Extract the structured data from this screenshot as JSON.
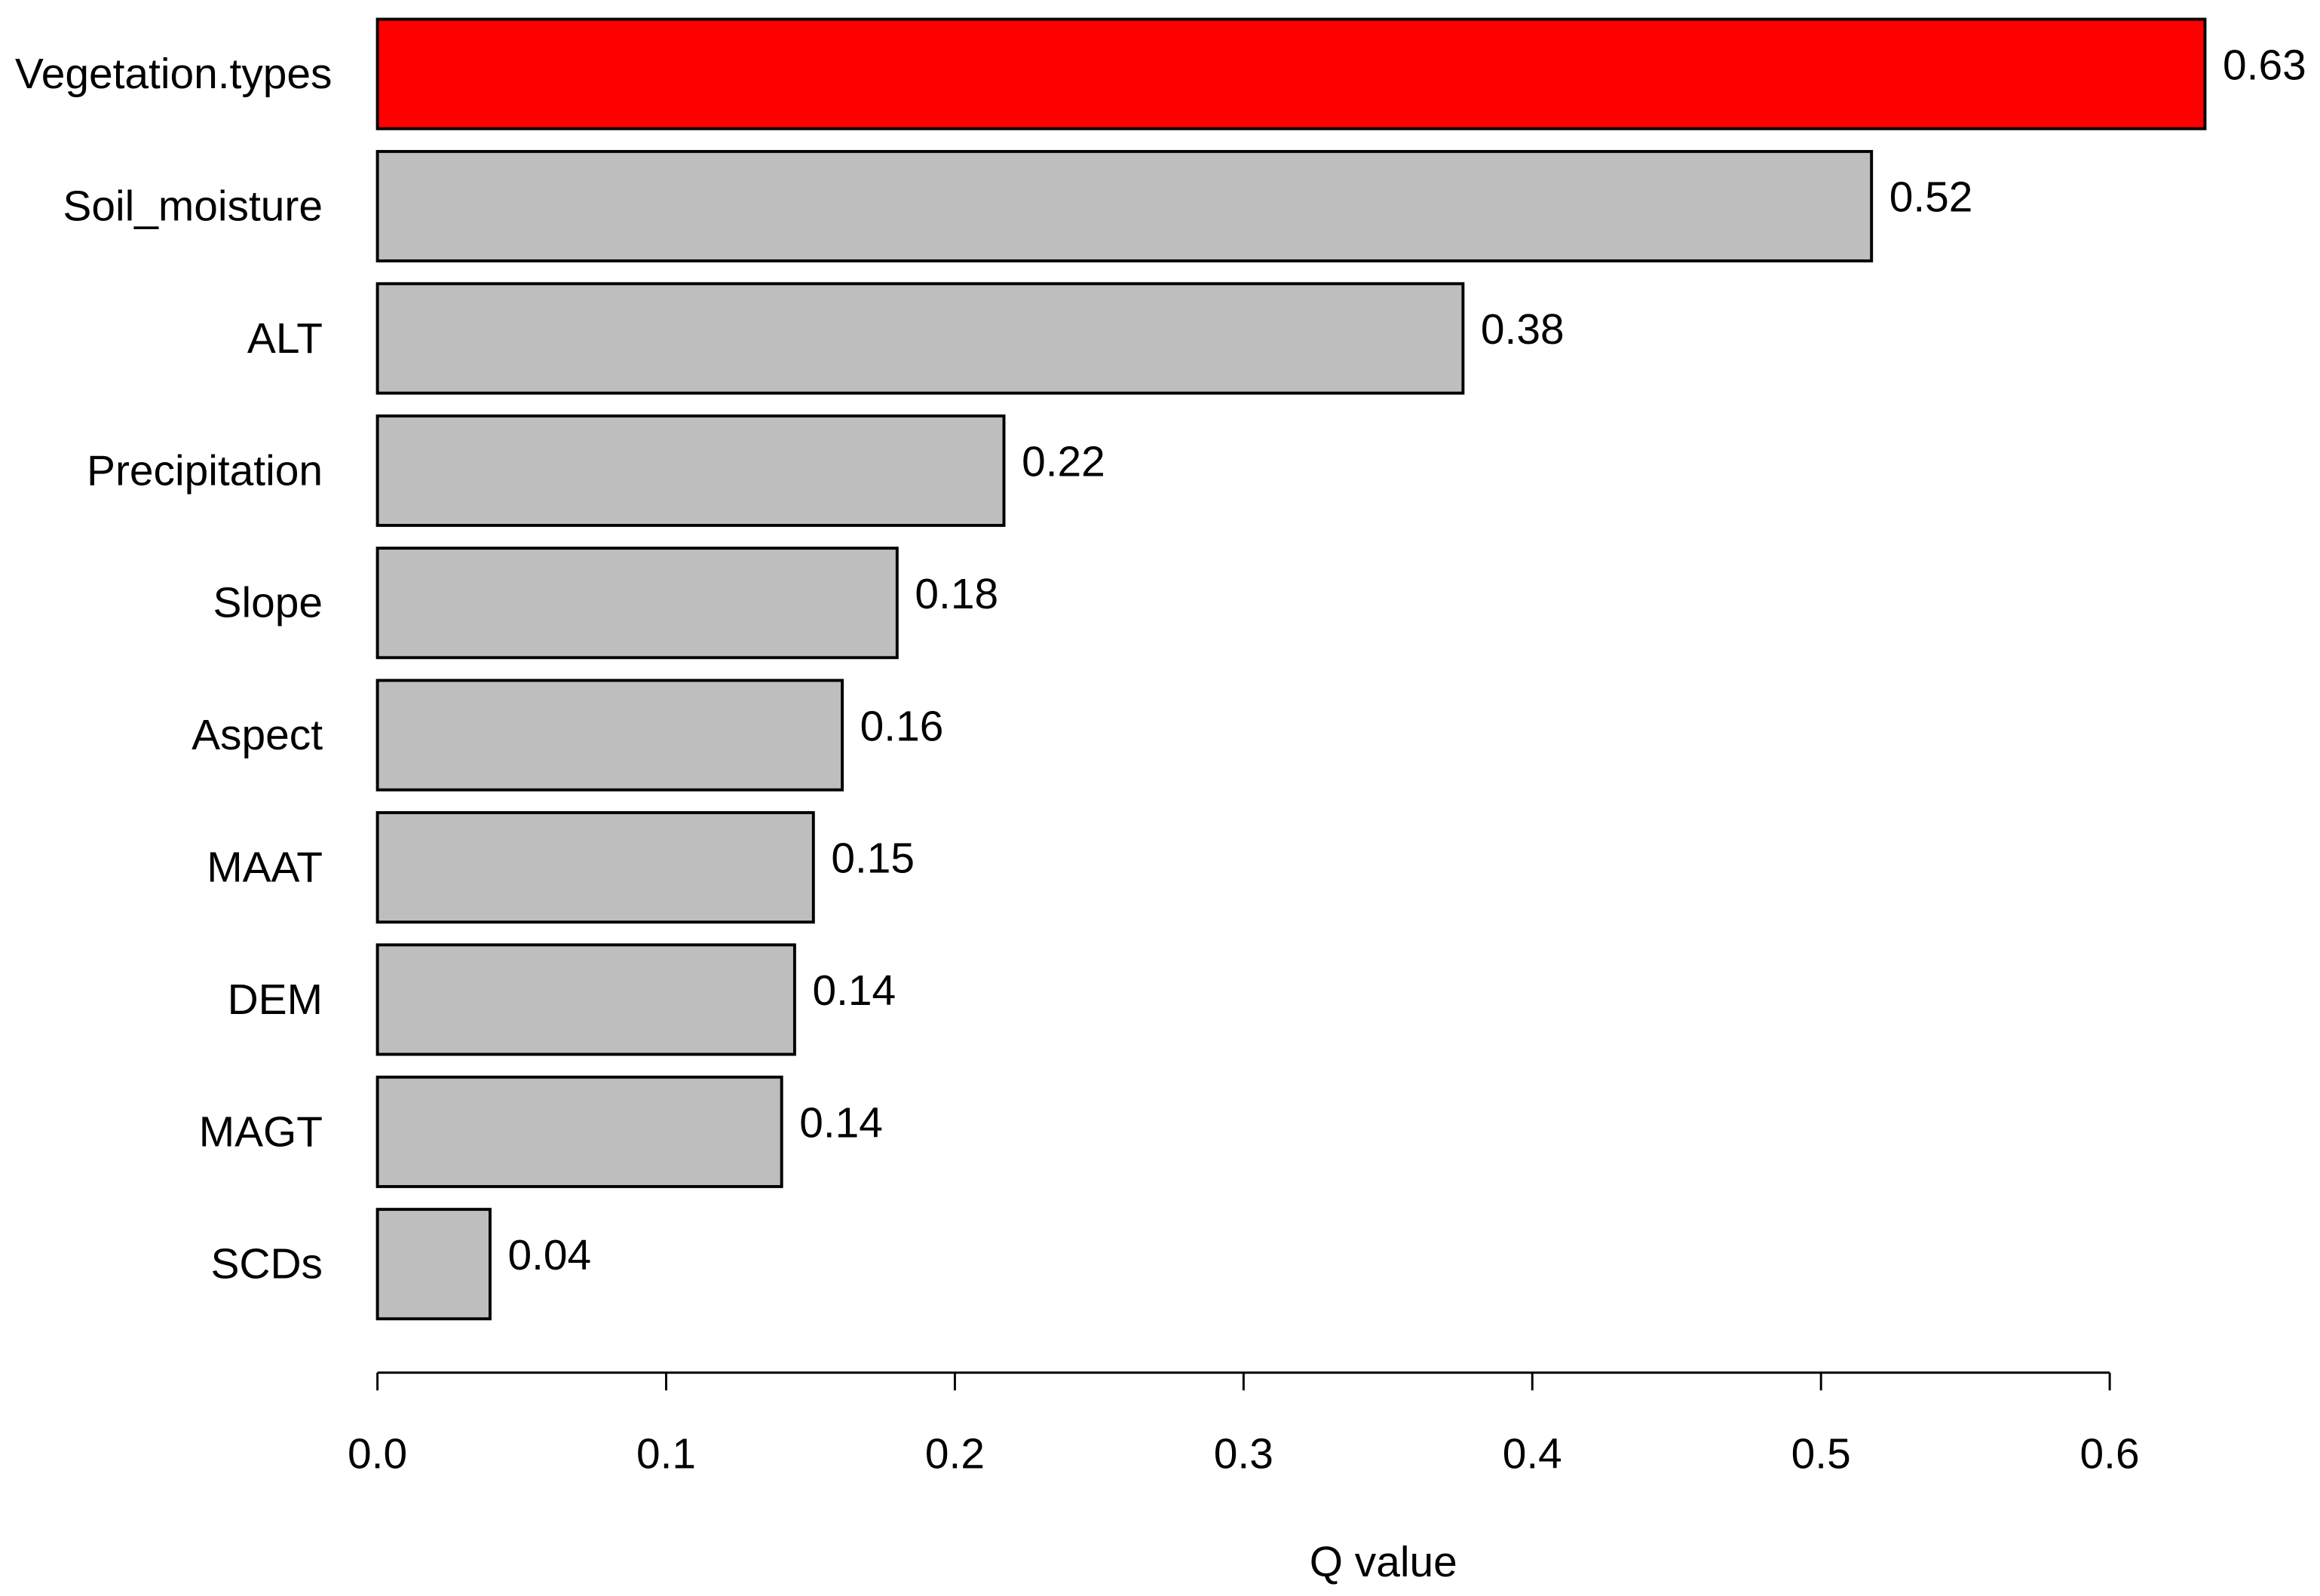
{
  "chart_data": {
    "type": "barh",
    "x_label": "Q value",
    "categories": [
      "Vegetation.types",
      "Soil_moisture",
      "ALT",
      "Precipitation",
      "Slope",
      "Aspect",
      "MAAT",
      "DEM",
      "MAGT",
      "SCDs"
    ],
    "values": [
      0.633,
      0.5175,
      0.376,
      0.217,
      0.18,
      0.161,
      0.151,
      0.1445,
      0.14,
      0.039
    ],
    "value_labels": [
      "0.63",
      "0.52",
      "0.38",
      "0.22",
      "0.18",
      "0.16",
      "0.15",
      "0.14",
      "0.14",
      "0.04"
    ],
    "colors": [
      "#ff0000",
      "#bebebe",
      "#bebebe",
      "#bebebe",
      "#bebebe",
      "#bebebe",
      "#bebebe",
      "#bebebe",
      "#bebebe",
      "#bebebe"
    ],
    "xlim": [
      0,
      0.6
    ],
    "xticks": [
      {
        "value": 0,
        "label": "0.0"
      },
      0.1,
      0.2,
      0.3,
      0.4,
      0.5,
      0.6
    ],
    "grid": false
  }
}
